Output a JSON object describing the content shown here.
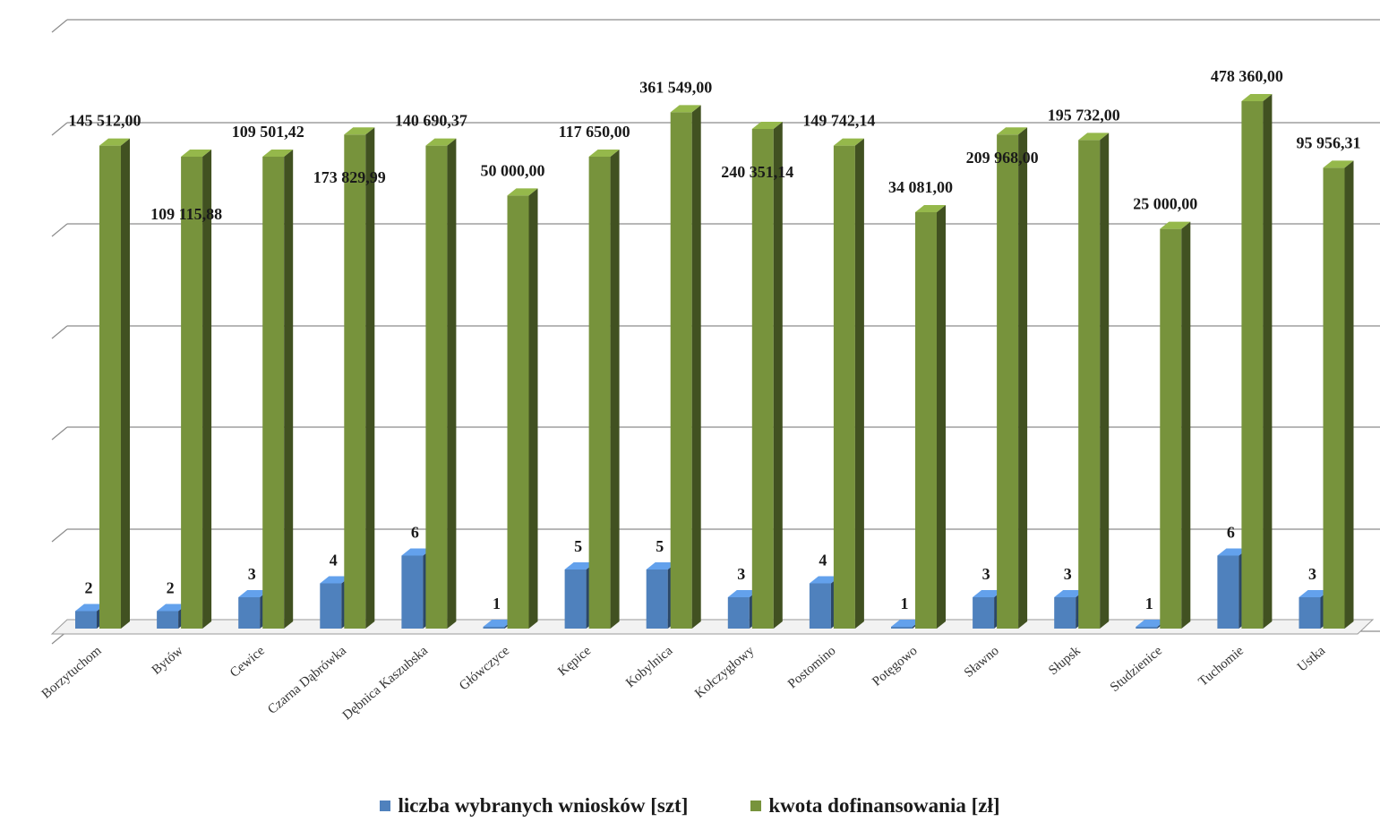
{
  "chart_data": {
    "type": "bar",
    "categories": [
      "Borzytuchom",
      "Bytów",
      "Cewice",
      "Czarna Dąbrówka",
      "Dębnica Kaszubska",
      "Główczyce",
      "Kępice",
      "Kobylnica",
      "Kołczygłowy",
      "Postomino",
      "Potęgowo",
      "Sławno",
      "Słupsk",
      "Studzienice",
      "Tuchomie",
      "Ustka"
    ],
    "series": [
      {
        "name": "liczba wybranych wniosków [szt]",
        "color": "#4f81bd",
        "values": [
          2,
          2,
          3,
          4,
          6,
          1,
          5,
          5,
          3,
          4,
          1,
          3,
          3,
          1,
          6,
          3
        ],
        "labels": [
          "2",
          "2",
          "3",
          "4",
          "6",
          "1",
          "5",
          "5",
          "3",
          "4",
          "1",
          "3",
          "3",
          "1",
          "6",
          "3"
        ]
      },
      {
        "name": "kwota dofinansowania [zł]",
        "color": "#77933c",
        "values": [
          145512.0,
          109115.88,
          109501.42,
          173829.99,
          140690.37,
          50000.0,
          117650.0,
          361549.0,
          240351.14,
          149742.14,
          34081.0,
          209968.0,
          195732.0,
          25000.0,
          478360.0,
          95956.31
        ],
        "labels": [
          "145 512,00",
          "109 115,88",
          "109 501,42",
          "173 829,99",
          "140 690,37",
          "50 000,00",
          "117 650,00",
          "361 549,00",
          "240 351,14",
          "149 742,14",
          "34 081,00",
          "209 968,00",
          "195 732,00",
          "25 000,00",
          "478 360,00",
          "95 956,31"
        ],
        "heights": [
          0.87,
          0.85,
          0.85,
          0.89,
          0.87,
          0.78,
          0.85,
          0.93,
          0.9,
          0.87,
          0.75,
          0.89,
          0.88,
          0.72,
          0.95,
          0.83
        ]
      }
    ],
    "grid": true,
    "legend_position": "bottom"
  }
}
